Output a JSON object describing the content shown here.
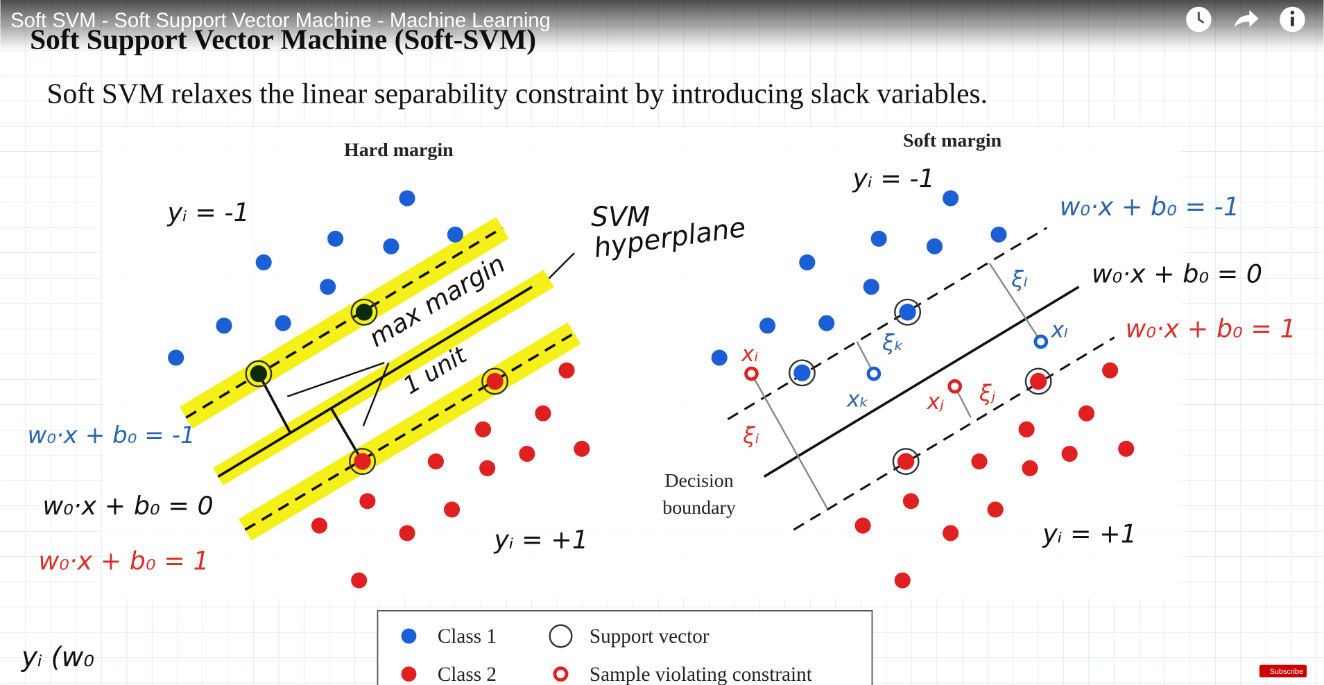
{
  "player": {
    "video_title": "Soft SVM - Soft Support Vector Machine - Machine Learning",
    "subscribe": "Subscribe"
  },
  "slide": {
    "title": "Soft Support Vector Machine (Soft-SVM)",
    "subtitle": "Soft SVM relaxes the linear separability constraint by introducing slack variables.",
    "hard_margin": {
      "heading": "Hard margin",
      "class_neg": "yᵢ = -1",
      "class_pos": "yᵢ = +1",
      "hyperplane_note": [
        "SVM",
        "hyperplane"
      ],
      "margin_note": "max margin",
      "unit_note": "1 unit",
      "eq_neg": "w₀·x + b₀ = -1",
      "eq_zero": "w₀·x + b₀ = 0",
      "eq_pos": "w₀·x + b₀ = 1"
    },
    "soft_margin": {
      "heading": "Soft margin",
      "class_neg": "yᵢ = -1",
      "class_pos": "yᵢ = +1",
      "eq_neg": "w₀·x + b₀ = -1",
      "eq_zero": "w₀·x + b₀ = 0",
      "eq_pos": "w₀·x + b₀ = 1",
      "decision_boundary": [
        "Decision",
        "boundary"
      ],
      "slack_l": "ξₗ",
      "point_l": "xₗ",
      "slack_k": "ξₖ",
      "point_k": "xₖ",
      "point_i": "xᵢ",
      "slack_i": "ξᵢ",
      "point_j": "xⱼ",
      "slack_j": "ξⱼ"
    },
    "legend": [
      "Class 1",
      "Support vector",
      "Class 2",
      "Sample violating constraint"
    ],
    "footer_fragment": "yᵢ (w₀"
  }
}
